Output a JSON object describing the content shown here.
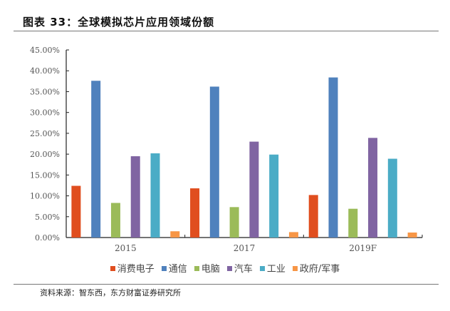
{
  "title": "图表 33：全球模拟芯片应用领域份额",
  "source": "资料来源：智东西，东方财富证券研究所",
  "chart_data": {
    "type": "bar",
    "categories": [
      "2015",
      "2017",
      "2019F"
    ],
    "ylim": [
      0,
      45
    ],
    "yticks": [
      "0.00%",
      "5.00%",
      "10.00%",
      "15.00%",
      "20.00%",
      "25.00%",
      "30.00%",
      "35.00%",
      "40.00%",
      "45.00%"
    ],
    "grid": false,
    "legend_position": "bottom",
    "series": [
      {
        "name": "消费电子",
        "color": "#E04E1F",
        "values": [
          12.4,
          11.8,
          10.2
        ]
      },
      {
        "name": "通信",
        "color": "#4F81BD",
        "values": [
          37.6,
          36.2,
          38.4
        ]
      },
      {
        "name": "电脑",
        "color": "#9BBB59",
        "values": [
          8.3,
          7.3,
          6.9
        ]
      },
      {
        "name": "汽车",
        "color": "#8064A2",
        "values": [
          19.5,
          23.0,
          23.9
        ]
      },
      {
        "name": "工业",
        "color": "#4BACC6",
        "values": [
          20.2,
          19.9,
          18.9
        ]
      },
      {
        "name": "政府/军事",
        "color": "#F79646",
        "values": [
          1.5,
          1.3,
          1.2
        ]
      }
    ]
  }
}
